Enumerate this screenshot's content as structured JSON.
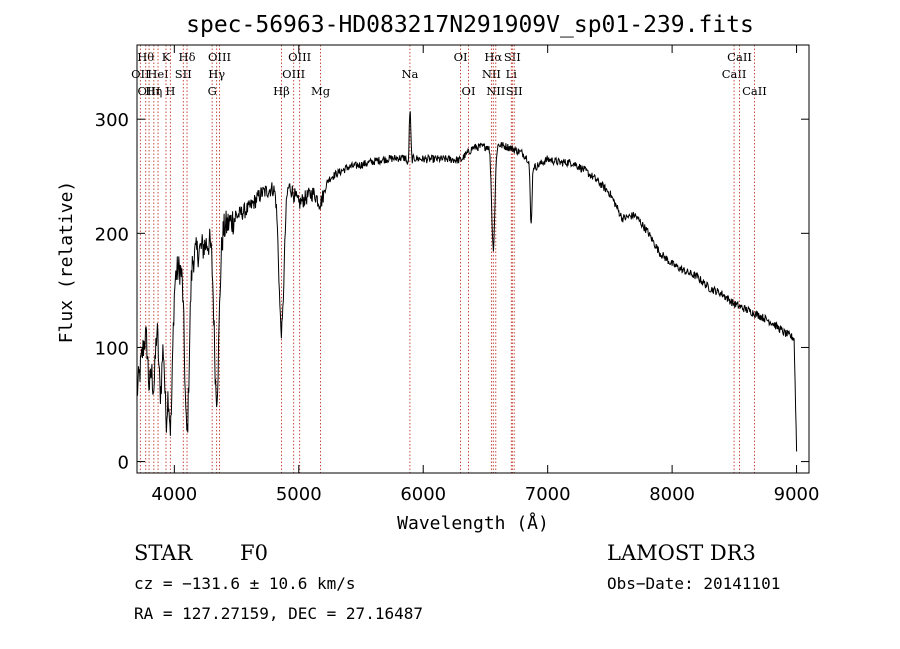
{
  "chart_data": {
    "type": "line",
    "title": "spec-56963-HD083217N291909V_sp01-239.fits",
    "xlabel": "Wavelength (Å)",
    "ylabel": "Flux (relative)",
    "xlim": [
      3700,
      9100
    ],
    "ylim": [
      -10,
      365
    ],
    "xticks": [
      4000,
      5000,
      6000,
      7000,
      8000,
      9000
    ],
    "yticks": [
      0,
      100,
      200,
      300
    ],
    "continuum": [
      [
        3700,
        60
      ],
      [
        3750,
        100
      ],
      [
        3800,
        130
      ],
      [
        3850,
        140
      ],
      [
        3900,
        155
      ],
      [
        3950,
        160
      ],
      [
        4000,
        165
      ],
      [
        4100,
        175
      ],
      [
        4200,
        185
      ],
      [
        4300,
        195
      ],
      [
        4400,
        205
      ],
      [
        4500,
        215
      ],
      [
        4600,
        222
      ],
      [
        4700,
        235
      ],
      [
        4800,
        240
      ],
      [
        4900,
        247
      ],
      [
        5000,
        226
      ],
      [
        5100,
        235
      ],
      [
        5200,
        245
      ],
      [
        5300,
        252
      ],
      [
        5400,
        258
      ],
      [
        5500,
        260
      ],
      [
        5600,
        263
      ],
      [
        5700,
        265
      ],
      [
        5800,
        266
      ],
      [
        5900,
        266
      ],
      [
        6000,
        265
      ],
      [
        6100,
        265
      ],
      [
        6200,
        265
      ],
      [
        6300,
        264
      ],
      [
        6400,
        275
      ],
      [
        6500,
        276
      ],
      [
        6600,
        278
      ],
      [
        6700,
        275
      ],
      [
        6800,
        270
      ],
      [
        6900,
        258
      ],
      [
        7000,
        265
      ],
      [
        7100,
        262
      ],
      [
        7200,
        262
      ],
      [
        7300,
        255
      ],
      [
        7400,
        246
      ],
      [
        7500,
        235
      ],
      [
        7600,
        213
      ],
      [
        7700,
        216
      ],
      [
        7800,
        202
      ],
      [
        7900,
        183
      ],
      [
        8000,
        173
      ],
      [
        8100,
        167
      ],
      [
        8200,
        162
      ],
      [
        8300,
        152
      ],
      [
        8400,
        147
      ],
      [
        8500,
        138
      ],
      [
        8600,
        133
      ],
      [
        8700,
        128
      ],
      [
        8800,
        122
      ],
      [
        8900,
        113
      ],
      [
        8980,
        108
      ],
      [
        9000,
        10
      ]
    ],
    "absorption_features": [
      {
        "wavelength": 3800,
        "depth": 60,
        "width": 18
      },
      {
        "wavelength": 3835,
        "depth": 70,
        "width": 20
      },
      {
        "wavelength": 3889,
        "depth": 90,
        "width": 22
      },
      {
        "wavelength": 3933,
        "depth": 110,
        "width": 18
      },
      {
        "wavelength": 3970,
        "depth": 130,
        "width": 22
      },
      {
        "wavelength": 4101,
        "depth": 150,
        "width": 25
      },
      {
        "wavelength": 4340,
        "depth": 140,
        "width": 28
      },
      {
        "wavelength": 4861,
        "depth": 130,
        "width": 30
      },
      {
        "wavelength": 5175,
        "depth": 15,
        "width": 40
      },
      {
        "wavelength": 5890,
        "depth": 25,
        "width": 15
      },
      {
        "wavelength": 6563,
        "depth": 90,
        "width": 18
      },
      {
        "wavelength": 6867,
        "depth": 55,
        "width": 10
      }
    ],
    "emission_features": [
      {
        "wavelength": 5893,
        "height": 65,
        "width": 10
      }
    ],
    "line_markers": [
      {
        "wavelength": 3727,
        "label": "OII",
        "row": 1
      },
      {
        "wavelength": 3770,
        "label": "Hθ",
        "row": 0
      },
      {
        "wavelength": 3797,
        "label": "OIII",
        "row": 2
      },
      {
        "wavelength": 3835,
        "label": "Hη",
        "row": 2
      },
      {
        "wavelength": 3869,
        "label": "HeI",
        "row": 1
      },
      {
        "wavelength": 3933,
        "label": "K",
        "row": 0
      },
      {
        "wavelength": 3968,
        "label": "H",
        "row": 2
      },
      {
        "wavelength": 4072,
        "label": "SII",
        "row": 1
      },
      {
        "wavelength": 4102,
        "label": "Hδ",
        "row": 0
      },
      {
        "wavelength": 4304,
        "label": "G",
        "row": 2
      },
      {
        "wavelength": 4340,
        "label": "Hγ",
        "row": 1
      },
      {
        "wavelength": 4363,
        "label": "OIII",
        "row": 0
      },
      {
        "wavelength": 4861,
        "label": "Hβ",
        "row": 2
      },
      {
        "wavelength": 4959,
        "label": "OIII",
        "row": 1
      },
      {
        "wavelength": 5007,
        "label": "OIII",
        "row": 0
      },
      {
        "wavelength": 5175,
        "label": "Mg",
        "row": 2
      },
      {
        "wavelength": 5893,
        "label": "Na",
        "row": 1
      },
      {
        "wavelength": 6300,
        "label": "OI",
        "row": 0
      },
      {
        "wavelength": 6364,
        "label": "OI",
        "row": 2
      },
      {
        "wavelength": 6548,
        "label": "NII",
        "row": 1
      },
      {
        "wavelength": 6563,
        "label": "Hα",
        "row": 0
      },
      {
        "wavelength": 6583,
        "label": "NII",
        "row": 2
      },
      {
        "wavelength": 6708,
        "label": "Li",
        "row": 1
      },
      {
        "wavelength": 6716,
        "label": "SII",
        "row": 0
      },
      {
        "wavelength": 6731,
        "label": "SII",
        "row": 2
      },
      {
        "wavelength": 8498,
        "label": "CaII",
        "row": 1
      },
      {
        "wavelength": 8542,
        "label": "CaII",
        "row": 0
      },
      {
        "wavelength": 8662,
        "label": "CaII",
        "row": 2
      }
    ]
  },
  "info": {
    "class": "STAR",
    "subclass": "F0",
    "survey": "LAMOST DR3",
    "redshift": "cz = −131.6 ± 10.6 km/s",
    "obs_date": "Obs−Date: 20141101",
    "coords": "RA = 127.27159, DEC =  27.16487"
  }
}
